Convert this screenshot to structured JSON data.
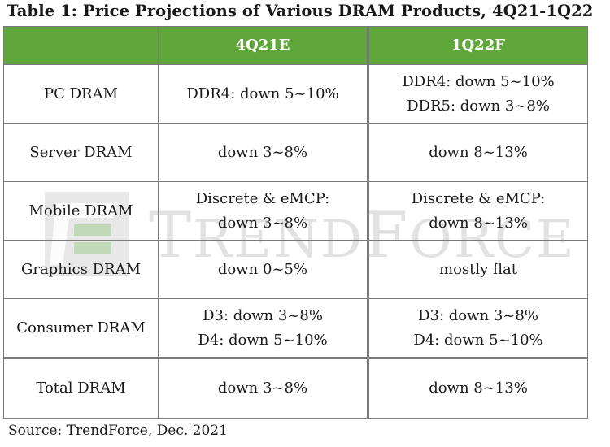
{
  "title": "Table 1: Price Projections of Various DRAM Products, 4Q21-1Q22",
  "header": {
    "col1": "",
    "col2": "4Q21E",
    "col3": "1Q22F"
  },
  "rows": [
    {
      "product": "PC DRAM",
      "q4": [
        "DDR4: down 5~10%"
      ],
      "q1": [
        "DDR4: down 5~10%",
        "DDR5: down 3~8%"
      ]
    },
    {
      "product": "Server DRAM",
      "q4": [
        "down 3~8%"
      ],
      "q1": [
        "down 8~13%"
      ]
    },
    {
      "product": "Mobile DRAM",
      "q4": [
        "Discrete & eMCP:",
        "down 3~8%"
      ],
      "q1": [
        "Discrete & eMCP:",
        "down 8~13%"
      ]
    },
    {
      "product": "Graphics DRAM",
      "q4": [
        "down 0~5%"
      ],
      "q1": [
        "mostly flat"
      ]
    },
    {
      "product": "Consumer DRAM",
      "q4": [
        "D3: down 3~8%",
        "D4: down 5~10%"
      ],
      "q1": [
        "D3: down 3~8%",
        "D4: down 5~10%"
      ]
    }
  ],
  "total": {
    "product": "Total DRAM",
    "q4": "down 3~8%",
    "q1": "down 8~13%"
  },
  "watermark": {
    "text_big1": "T",
    "text_small1": "REND",
    "text_big2": "F",
    "text_small2": "ORCE",
    "logo_icon": "trendforce-logo"
  },
  "source": "Source: TrendForce, Dec. 2021",
  "colors": {
    "header_bg": "#5fa73a",
    "header_text": "#ffffff",
    "border": "#7a7a7a"
  }
}
